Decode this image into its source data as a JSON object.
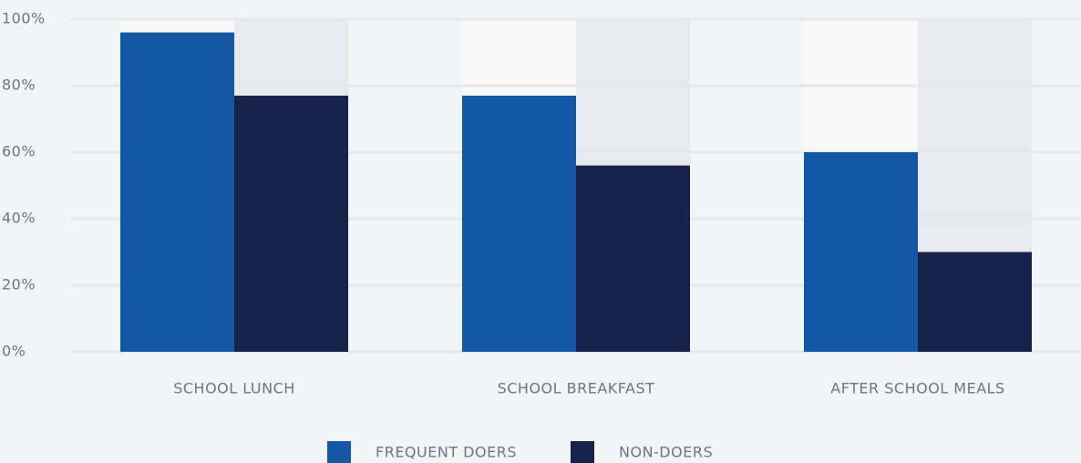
{
  "chart_data": {
    "type": "bar",
    "categories": [
      "SCHOOL LUNCH",
      "SCHOOL BREAKFAST",
      "AFTER SCHOOL MEALS"
    ],
    "series": [
      {
        "name": "FREQUENT DOERS",
        "color": "#1258a4",
        "values": [
          96,
          77,
          60
        ]
      },
      {
        "name": "NON-DOERS",
        "color": "#18224b",
        "values": [
          77,
          56,
          30
        ]
      }
    ],
    "ylim": [
      0,
      100
    ],
    "yticks": [
      {
        "value": 0,
        "label": "0%"
      },
      {
        "value": 20,
        "label": "20%"
      },
      {
        "value": 40,
        "label": "40%"
      },
      {
        "value": 60,
        "label": "60%"
      },
      {
        "value": 80,
        "label": "80%"
      },
      {
        "value": 100,
        "label": "100%"
      }
    ],
    "grid": true,
    "legend": "bottom"
  }
}
